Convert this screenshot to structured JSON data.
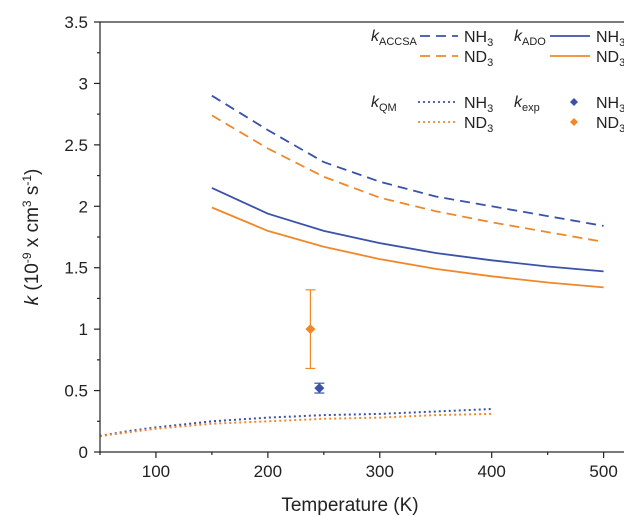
{
  "chart_data": {
    "type": "line",
    "xlabel": "Temperature (K)",
    "ylabel_main": "k",
    "ylabel_unit_parts": [
      "(10",
      "-9",
      " x cm",
      "3",
      " s",
      "-1",
      ")"
    ],
    "xlim": [
      50,
      520
    ],
    "ylim": [
      0,
      3.5
    ],
    "xticks": [
      100,
      200,
      300,
      400,
      500
    ],
    "yticks": [
      0,
      0.5,
      1,
      1.5,
      2,
      2.5,
      3,
      3.5
    ],
    "ytick_labels": [
      "0",
      "0.5",
      "1",
      "1.5",
      "2",
      "2.5",
      "3",
      "3.5"
    ],
    "grid": false,
    "legend_position": "top-right",
    "colors": {
      "blue": "#3a52a8",
      "orange": "#f0882a"
    },
    "series": [
      {
        "name": "NH3",
        "group": "ACCSA",
        "style": "dashed",
        "color": "#3a52a8",
        "x": [
          150,
          200,
          250,
          300,
          350,
          400,
          450,
          500
        ],
        "y": [
          2.9,
          2.62,
          2.36,
          2.2,
          2.08,
          2.0,
          1.92,
          1.84
        ]
      },
      {
        "name": "ND3",
        "group": "ACCSA",
        "style": "dashed",
        "color": "#f0882a",
        "x": [
          150,
          200,
          250,
          300,
          350,
          400,
          450,
          500
        ],
        "y": [
          2.74,
          2.47,
          2.24,
          2.07,
          1.96,
          1.87,
          1.79,
          1.71
        ]
      },
      {
        "name": "NH3",
        "group": "ADO",
        "style": "solid",
        "color": "#3a52a8",
        "x": [
          150,
          200,
          250,
          300,
          350,
          400,
          450,
          500
        ],
        "y": [
          2.15,
          1.94,
          1.8,
          1.7,
          1.62,
          1.56,
          1.51,
          1.47
        ]
      },
      {
        "name": "ND3",
        "group": "ADO",
        "style": "solid",
        "color": "#f0882a",
        "x": [
          150,
          200,
          250,
          300,
          350,
          400,
          450,
          500
        ],
        "y": [
          1.99,
          1.8,
          1.67,
          1.57,
          1.49,
          1.43,
          1.38,
          1.34
        ]
      },
      {
        "name": "NH3",
        "group": "QM",
        "style": "dotted",
        "color": "#3a52a8",
        "x": [
          50,
          75,
          100,
          150,
          200,
          250,
          300,
          350,
          400
        ],
        "y": [
          0.13,
          0.17,
          0.2,
          0.25,
          0.28,
          0.3,
          0.31,
          0.33,
          0.35
        ]
      },
      {
        "name": "ND3",
        "group": "QM",
        "style": "dotted",
        "color": "#f0882a",
        "x": [
          50,
          75,
          100,
          150,
          200,
          250,
          300,
          350,
          400
        ],
        "y": [
          0.13,
          0.16,
          0.19,
          0.23,
          0.25,
          0.27,
          0.28,
          0.3,
          0.31
        ]
      }
    ],
    "points": [
      {
        "name": "NH3",
        "group": "exp",
        "color": "#3a52a8",
        "x": 246,
        "y": 0.52,
        "err": 0.04
      },
      {
        "name": "ND3",
        "group": "exp",
        "color": "#f0882a",
        "x": 238,
        "y": 1.0,
        "err": 0.32
      }
    ],
    "legend": {
      "entries": [
        {
          "k": "k",
          "sub": "ACCSA",
          "line1": "NH",
          "line1_sub": "3",
          "line2": "ND",
          "line2_sub": "3"
        },
        {
          "k": "k",
          "sub": "ADO",
          "line1": "NH",
          "line1_sub": "3",
          "line2": "ND",
          "line2_sub": "3"
        },
        {
          "k": "k",
          "sub": "QM",
          "line1": "NH",
          "line1_sub": "3",
          "line2": "ND",
          "line2_sub": "3"
        },
        {
          "k": "k",
          "sub": "exp",
          "line1": "NH",
          "line1_sub": "3",
          "line2": "ND",
          "line2_sub": "3"
        }
      ]
    }
  }
}
